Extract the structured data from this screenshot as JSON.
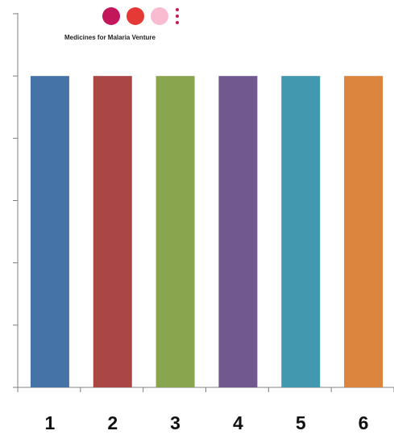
{
  "logo": {
    "text": "Medicines for Malaria Venture",
    "circle_colors": [
      "#c2185b",
      "#e53935",
      "#f8bbd0"
    ],
    "dot_color": "#c2185b"
  },
  "chart_data": {
    "type": "bar",
    "categories": [
      "1",
      "2",
      "3",
      "4",
      "5",
      "6"
    ],
    "values": [
      5,
      5,
      5,
      5,
      5,
      5
    ],
    "colors": [
      "#4572a7",
      "#aa4643",
      "#89a54e",
      "#71588f",
      "#4198af",
      "#db843d"
    ],
    "ylim": [
      0,
      6
    ],
    "y_ticks": [
      0,
      1,
      2,
      3,
      4,
      5,
      6
    ],
    "y_tick_labels_shown": false,
    "grid": false,
    "legend": "none",
    "title": "",
    "xlabel": "",
    "ylabel": ""
  }
}
